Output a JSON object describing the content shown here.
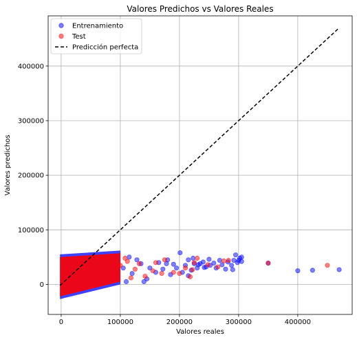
{
  "chart_data": {
    "type": "scatter",
    "title": "Valores Predichos vs Valores Reales",
    "xlabel": "Valores reales",
    "ylabel": "Valores predichos",
    "xlim": [
      -22000,
      492000
    ],
    "ylim": [
      -55000,
      492000
    ],
    "xticks": [
      0,
      100000,
      200000,
      300000,
      400000
    ],
    "yticks": [
      0,
      100000,
      200000,
      300000,
      400000
    ],
    "grid": true,
    "legend_position": "top-left",
    "series": [
      {
        "name": "Entrenamiento",
        "kind": "points",
        "color": "#0000ff",
        "alpha": 0.5,
        "points": [
          [
            201000,
            58000
          ],
          [
            215000,
            45000
          ],
          [
            223000,
            48000
          ],
          [
            230000,
            30000
          ],
          [
            235000,
            38000
          ],
          [
            240000,
            41000
          ],
          [
            245000,
            32000
          ],
          [
            250000,
            46000
          ],
          [
            252000,
            35000
          ],
          [
            258000,
            39000
          ],
          [
            262000,
            30000
          ],
          [
            268000,
            44000
          ],
          [
            272000,
            36000
          ],
          [
            278000,
            28000
          ],
          [
            282000,
            41000
          ],
          [
            288000,
            35000
          ],
          [
            292000,
            44000
          ],
          [
            298000,
            40000
          ],
          [
            302000,
            48000
          ],
          [
            305000,
            50000
          ],
          [
            295000,
            54000
          ],
          [
            290000,
            27000
          ],
          [
            300000,
            44000
          ],
          [
            305000,
            42000
          ],
          [
            350000,
            39000
          ],
          [
            400000,
            25000
          ],
          [
            425000,
            26000
          ],
          [
            470000,
            27000
          ],
          [
            195000,
            30000
          ],
          [
            205000,
            22000
          ],
          [
            210000,
            35000
          ],
          [
            220000,
            26000
          ],
          [
            185000,
            18000
          ],
          [
            178000,
            38000
          ],
          [
            172000,
            28000
          ],
          [
            165000,
            40000
          ],
          [
            160000,
            22000
          ],
          [
            150000,
            30000
          ],
          [
            145000,
            10000
          ],
          [
            140000,
            5000
          ],
          [
            135000,
            38000
          ],
          [
            128000,
            45000
          ],
          [
            120000,
            20000
          ],
          [
            115000,
            50000
          ],
          [
            110000,
            5000
          ],
          [
            105000,
            30000
          ],
          [
            180000,
            45000
          ],
          [
            190000,
            37000
          ],
          [
            215000,
            16000
          ],
          [
            225000,
            38000
          ],
          [
            232000,
            36000
          ],
          [
            242000,
            31000
          ]
        ]
      },
      {
        "name": "Test",
        "kind": "points",
        "color": "#ff0000",
        "alpha": 0.5,
        "points": [
          [
            200000,
            20000
          ],
          [
            218000,
            14000
          ],
          [
            225000,
            40000
          ],
          [
            230000,
            48000
          ],
          [
            248000,
            36000
          ],
          [
            265000,
            32000
          ],
          [
            275000,
            43000
          ],
          [
            283000,
            44000
          ],
          [
            350000,
            39000
          ],
          [
            450000,
            35000
          ],
          [
            175000,
            45000
          ],
          [
            160000,
            40000
          ],
          [
            155000,
            25000
          ],
          [
            142000,
            15000
          ],
          [
            132000,
            38000
          ],
          [
            125000,
            28000
          ],
          [
            112000,
            42000
          ],
          [
            118000,
            12000
          ],
          [
            108000,
            48000
          ],
          [
            100000,
            35000
          ],
          [
            170000,
            20000
          ],
          [
            190000,
            22000
          ],
          [
            210000,
            30000
          ],
          [
            222000,
            27000
          ]
        ]
      },
      {
        "name": "Predicción perfecta",
        "kind": "line",
        "color": "#000000",
        "style": "dashed",
        "points": [
          [
            -2000,
            -2000
          ],
          [
            470000,
            470000
          ]
        ]
      }
    ],
    "dense_cluster": {
      "x_range": [
        -2000,
        100000
      ],
      "y_range_at_x0": [
        -27000,
        55000
      ],
      "y_range_at_x100000": [
        0,
        62000
      ]
    }
  }
}
